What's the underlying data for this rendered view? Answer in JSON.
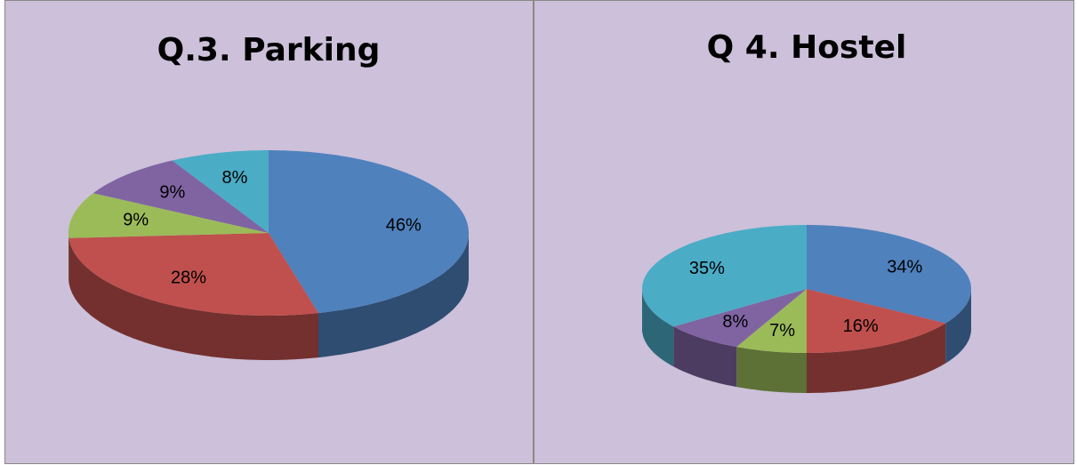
{
  "chart_data": [
    {
      "type": "pie",
      "title": "Q.3. Parking",
      "values": [
        46,
        28,
        9,
        9,
        8
      ],
      "value_labels": [
        "46%",
        "28%",
        "9%",
        "9%",
        "8%"
      ],
      "colors": [
        "#4f81bd",
        "#c0504d",
        "#9bbb59",
        "#8064a2",
        "#4bacc6"
      ]
    },
    {
      "type": "pie",
      "title": "Q 4. Hostel",
      "values": [
        34,
        16,
        7,
        8,
        35
      ],
      "value_labels": [
        "34%",
        "16%",
        "7%",
        "8%",
        "35%"
      ],
      "colors": [
        "#4f81bd",
        "#c0504d",
        "#9bbb59",
        "#8064a2",
        "#4bacc6"
      ]
    }
  ]
}
